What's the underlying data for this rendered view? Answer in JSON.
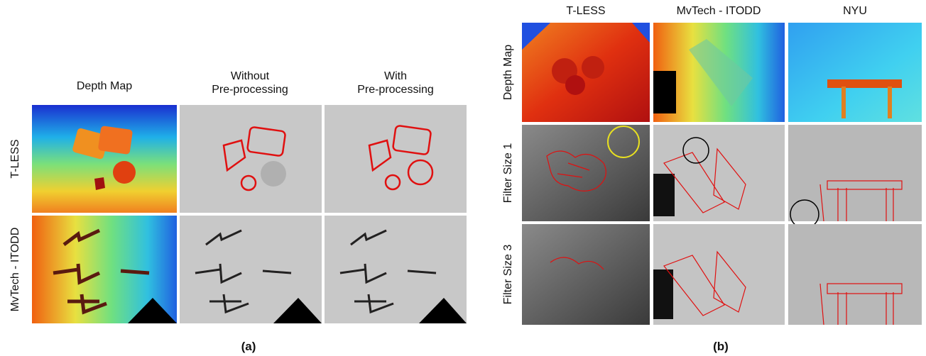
{
  "panel_a": {
    "columns": [
      [
        "Depth Map"
      ],
      [
        "Without",
        "Pre-processing"
      ],
      [
        "With",
        "Pre-processing"
      ]
    ],
    "rows": [
      "T-LESS",
      "MvTech - ITODD"
    ],
    "caption": "(a)"
  },
  "panel_b": {
    "columns": [
      "T-LESS",
      "MvTech - ITODD",
      "NYU"
    ],
    "rows": [
      "Depth Map",
      "Filter Size 1",
      "Filter Size 3"
    ],
    "caption": "(b)"
  }
}
